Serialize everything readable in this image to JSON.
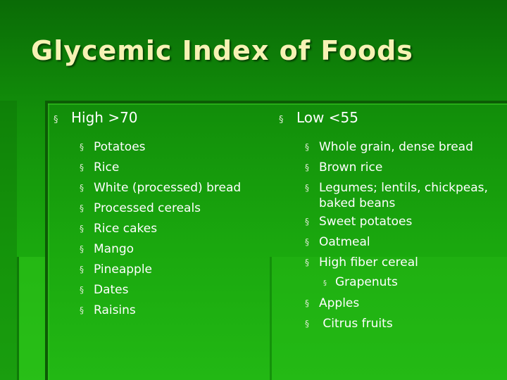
{
  "slide": {
    "title": "Glycemic Index of Foods",
    "bullet_glyph": "§"
  },
  "high": {
    "heading": "High >70",
    "items": [
      "Potatoes",
      "Rice",
      "White (processed) bread",
      "Processed cereals",
      "Rice cakes",
      "Mango",
      "Pineapple",
      "Dates",
      "Raisins"
    ]
  },
  "low": {
    "heading": "Low <55",
    "items": [
      "Whole grain, dense bread",
      "Brown rice",
      "Legumes; lentils, chickpeas, baked beans",
      "Sweet potatoes",
      "Oatmeal",
      "High fiber cereal"
    ],
    "sub_item": "Grapenuts",
    "items_after": [
      "Apples",
      " Citrus fruits"
    ]
  },
  "colors": {
    "background_top": "#0a6b06",
    "background_bottom": "#22b814",
    "title": "#f6f2b4",
    "text": "#ffffff"
  }
}
